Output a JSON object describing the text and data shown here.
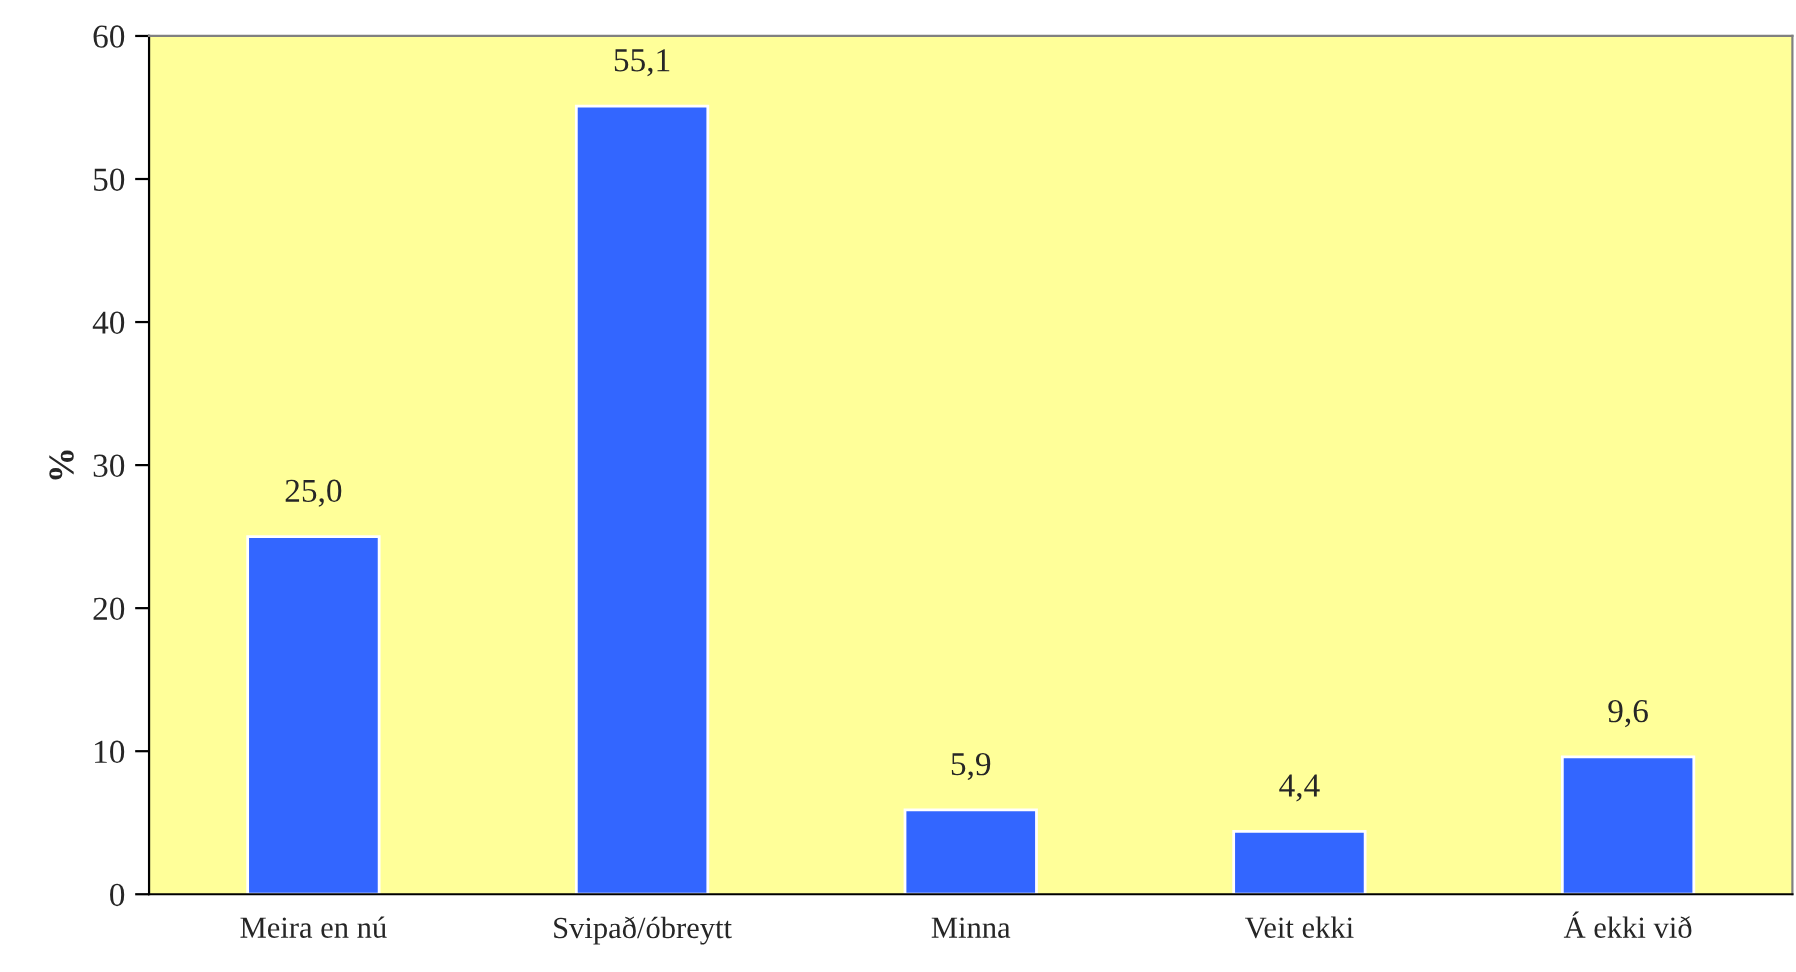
{
  "chart_data": {
    "type": "bar",
    "ylabel": "%",
    "categories": [
      "Meira en nú",
      "Svipað/óbreytt",
      "Minna",
      "Veit ekki",
      "Á ekki við"
    ],
    "values": [
      25.0,
      55.1,
      5.9,
      4.4,
      9.6
    ],
    "value_labels": [
      "25,0",
      "55,1",
      "5,9",
      "4,4",
      "9,6"
    ],
    "color": "#3366ff",
    "ylim": [
      0,
      60
    ],
    "yticks": [
      0,
      10,
      20,
      30,
      40,
      50,
      60
    ],
    "grid": false,
    "legend": false
  }
}
